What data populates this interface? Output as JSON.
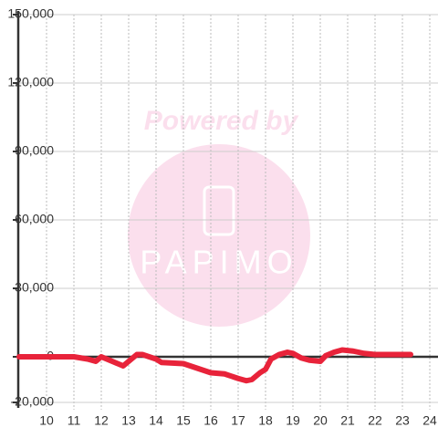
{
  "chart_data": {
    "type": "line",
    "watermark": {
      "text": "Powered by",
      "logo": "PAPIMO"
    },
    "xlim": [
      9,
      24.3
    ],
    "xticks": [
      10,
      11,
      12,
      13,
      14,
      15,
      16,
      17,
      18,
      19,
      20,
      21,
      22,
      23,
      24
    ],
    "ylim": [
      -20000,
      150000
    ],
    "yticks": [
      {
        "value": -20000,
        "label": "-20,000"
      },
      0,
      {
        "value": 30000,
        "label": "30,000"
      },
      {
        "value": 60000,
        "label": "60,000"
      },
      {
        "value": 90000,
        "label": "90,000"
      },
      {
        "value": 120000,
        "label": "120,000"
      },
      {
        "value": 150000,
        "label": "150,000"
      }
    ],
    "grid": true,
    "series": [
      {
        "color": "#e8233a",
        "x": [
          9,
          11,
          11.5,
          11.8,
          12,
          12.5,
          12.8,
          13.3,
          13.5,
          14,
          14.2,
          15,
          15.5,
          16,
          16.5,
          17,
          17.3,
          17.5,
          17.8,
          18,
          18.2,
          18.5,
          18.8,
          19,
          19.3,
          19.6,
          20,
          20.2,
          20.5,
          20.8,
          21.2,
          21.6,
          22,
          23.3
        ],
        "values": [
          0,
          0,
          -1000,
          -2000,
          0,
          -2500,
          -4000,
          1000,
          1000,
          -1000,
          -2500,
          -3000,
          -5000,
          -7000,
          -7500,
          -9500,
          -10500,
          -10000,
          -7000,
          -5500,
          -1000,
          1000,
          2000,
          1500,
          -500,
          -1500,
          -2000,
          500,
          2000,
          3000,
          2500,
          1500,
          1000,
          1000
        ]
      }
    ]
  }
}
